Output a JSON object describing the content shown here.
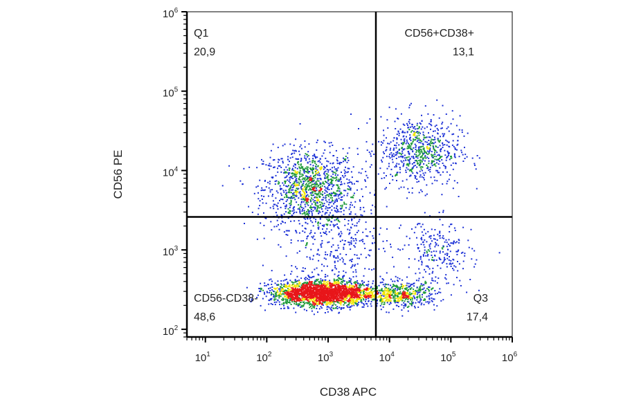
{
  "chart_data": {
    "type": "scatter",
    "xlabel": "CD38 APC",
    "ylabel": "CD56 PE",
    "x_scale": "log",
    "y_scale": "log",
    "xlim": [
      5,
      1000000
    ],
    "ylim": [
      80,
      1000000
    ],
    "x_ticks": [
      {
        "value": 10,
        "base": "10",
        "exp": "1"
      },
      {
        "value": 100,
        "base": "10",
        "exp": "2"
      },
      {
        "value": 1000,
        "base": "10",
        "exp": "3"
      },
      {
        "value": 10000,
        "base": "10",
        "exp": "4"
      },
      {
        "value": 100000,
        "base": "10",
        "exp": "5"
      },
      {
        "value": 1000000,
        "base": "10",
        "exp": "6"
      }
    ],
    "y_ticks": [
      {
        "value": 100,
        "base": "10",
        "exp": "2"
      },
      {
        "value": 1000,
        "base": "10",
        "exp": "3"
      },
      {
        "value": 10000,
        "base": "10",
        "exp": "4"
      },
      {
        "value": 100000,
        "base": "10",
        "exp": "5"
      },
      {
        "value": 1000000,
        "base": "10",
        "exp": "6"
      }
    ],
    "gates": {
      "x_threshold": 6000,
      "y_threshold": 2600
    },
    "quadrants": [
      {
        "name": "Q1",
        "value": "20,9",
        "position": "top-left"
      },
      {
        "name": "CD56+CD38+",
        "value": "13,1",
        "position": "top-right"
      },
      {
        "name": "CD56-CD38-",
        "value": "48,6",
        "position": "bottom-left"
      },
      {
        "name": "Q3",
        "value": "17,4",
        "position": "bottom-right"
      }
    ],
    "populations": [
      {
        "cx": 500,
        "cy": 6000,
        "sx": 0.38,
        "sy": 0.25,
        "n": 1200
      },
      {
        "cx": 30000,
        "cy": 18000,
        "sx": 0.33,
        "sy": 0.22,
        "n": 700
      },
      {
        "cx": 800,
        "cy": 290,
        "sx": 0.42,
        "sy": 0.08,
        "n": 2400
      },
      {
        "cx": 15000,
        "cy": 280,
        "sx": 0.3,
        "sy": 0.08,
        "n": 500
      },
      {
        "cx": 60000,
        "cy": 900,
        "sx": 0.28,
        "sy": 0.22,
        "n": 250
      },
      {
        "cx": 1500,
        "cy": 1200,
        "sx": 0.4,
        "sy": 0.28,
        "n": 300
      }
    ],
    "colors": {
      "sparse": "#1a2fd6",
      "medium": "#1f9a3a",
      "dense": "#f2e60a",
      "densest": "#e8161a",
      "axis": "#000000"
    },
    "grid": false
  }
}
